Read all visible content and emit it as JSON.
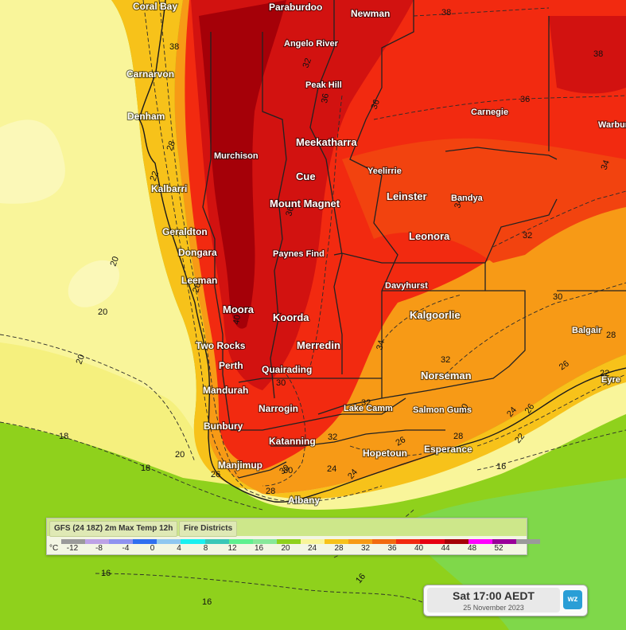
{
  "map": {
    "places": [
      {
        "name": "Coral Bay"
      },
      {
        "name": "Paraburdoo"
      },
      {
        "name": "Newman"
      },
      {
        "name": "Angelo River"
      },
      {
        "name": "Carnarvon"
      },
      {
        "name": "Peak Hill"
      },
      {
        "name": "Denham"
      },
      {
        "name": "Carnegie"
      },
      {
        "name": "Warburt"
      },
      {
        "name": "Meekatharra"
      },
      {
        "name": "Murchison"
      },
      {
        "name": "Yeelirrie"
      },
      {
        "name": "Cue"
      },
      {
        "name": "Kalbarri"
      },
      {
        "name": "Leinster"
      },
      {
        "name": "Bandya"
      },
      {
        "name": "Mount Magnet"
      },
      {
        "name": "Geraldton"
      },
      {
        "name": "Leonora"
      },
      {
        "name": "Dongara"
      },
      {
        "name": "Paynes Find"
      },
      {
        "name": "Leeman"
      },
      {
        "name": "Davyhurst"
      },
      {
        "name": "Moora"
      },
      {
        "name": "Kalgoorlie"
      },
      {
        "name": "Koorda"
      },
      {
        "name": "Balgair"
      },
      {
        "name": "Two Rocks"
      },
      {
        "name": "Merredin"
      },
      {
        "name": "Perth"
      },
      {
        "name": "Quairading"
      },
      {
        "name": "Norseman"
      },
      {
        "name": "Eyre"
      },
      {
        "name": "Mandurah"
      },
      {
        "name": "Lake Camm"
      },
      {
        "name": "Narrogin"
      },
      {
        "name": "Salmon Gums"
      },
      {
        "name": "Bunbury"
      },
      {
        "name": "Katanning"
      },
      {
        "name": "Hopetoun"
      },
      {
        "name": "Esperance"
      },
      {
        "name": "Manjimup"
      },
      {
        "name": "Albany"
      }
    ],
    "isotherm_labels": [
      {
        "text": "38"
      },
      {
        "text": "38"
      },
      {
        "text": "36"
      },
      {
        "text": "38"
      },
      {
        "text": "36"
      },
      {
        "text": "36"
      },
      {
        "text": "34"
      },
      {
        "text": "32"
      },
      {
        "text": "34"
      },
      {
        "text": "36"
      },
      {
        "text": "32"
      },
      {
        "text": "30"
      },
      {
        "text": "28"
      },
      {
        "text": "26"
      },
      {
        "text": "22"
      },
      {
        "text": "24"
      },
      {
        "text": "22"
      },
      {
        "text": "16"
      },
      {
        "text": "32"
      },
      {
        "text": "30"
      },
      {
        "text": "26"
      },
      {
        "text": "28"
      },
      {
        "text": "32"
      },
      {
        "text": "30"
      },
      {
        "text": "26"
      },
      {
        "text": "24"
      },
      {
        "text": "20"
      },
      {
        "text": "20"
      },
      {
        "text": "18"
      },
      {
        "text": "18"
      },
      {
        "text": "20"
      },
      {
        "text": "20"
      },
      {
        "text": "16"
      },
      {
        "text": "16"
      },
      {
        "text": "16"
      },
      {
        "text": "28"
      },
      {
        "text": "30"
      },
      {
        "text": "24"
      },
      {
        "text": "32"
      },
      {
        "text": "30"
      },
      {
        "text": "34"
      },
      {
        "text": "40"
      },
      {
        "text": "26"
      },
      {
        "text": "26"
      },
      {
        "text": "22"
      },
      {
        "text": "28"
      }
    ]
  },
  "legend": {
    "tabs": [
      "GFS (24 18Z) 2m Max Temp 12h",
      "Fire Districts"
    ],
    "unit": "°C",
    "ticks": [
      "-12",
      "-8",
      "-4",
      "0",
      "4",
      "8",
      "12",
      "16",
      "20",
      "24",
      "28",
      "32",
      "36",
      "40",
      "44",
      "48",
      "52"
    ],
    "colors": [
      "#9a9a9a",
      "#bda2e6",
      "#8f92f0",
      "#2f6ff0",
      "#8fc7f0",
      "#1af0f0",
      "#3ac7b8",
      "#5ef08f",
      "#88e89a",
      "#8fd11c",
      "#f9f59a",
      "#f7c21a",
      "#f79a16",
      "#f26b10",
      "#f22a10",
      "#e60012",
      "#a50008",
      "#ff00ff",
      "#9a009a",
      "#9a9a9a"
    ]
  },
  "timestamp": {
    "main": "Sat 17:00 AEDT",
    "sub": "25 November 2023"
  },
  "logo": {
    "text": "wz",
    "icon": "weatherzone-logo-icon"
  },
  "colors": {
    "sea_cool": "#8fd11c",
    "sea_mild": "#f9f59a",
    "land_warm": "#f79a16",
    "land_hot": "#f22a10",
    "land_very_hot": "#c30010"
  }
}
